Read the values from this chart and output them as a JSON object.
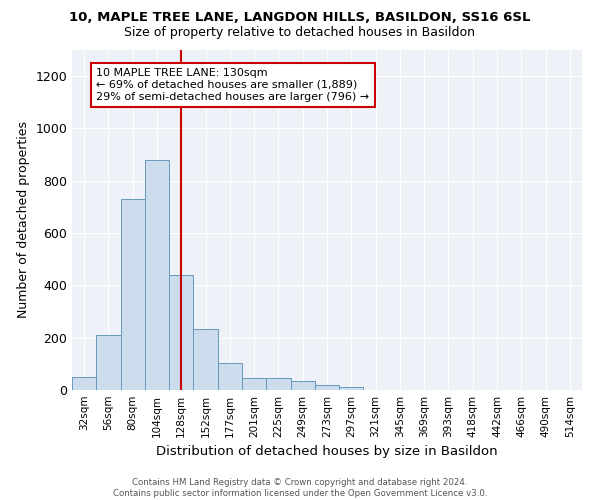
{
  "title1": "10, MAPLE TREE LANE, LANGDON HILLS, BASILDON, SS16 6SL",
  "title2": "Size of property relative to detached houses in Basildon",
  "xlabel": "Distribution of detached houses by size in Basildon",
  "ylabel": "Number of detached properties",
  "footnote": "Contains HM Land Registry data © Crown copyright and database right 2024.\nContains public sector information licensed under the Open Government Licence v3.0.",
  "bins": [
    "32sqm",
    "56sqm",
    "80sqm",
    "104sqm",
    "128sqm",
    "152sqm",
    "177sqm",
    "201sqm",
    "225sqm",
    "249sqm",
    "273sqm",
    "297sqm",
    "321sqm",
    "345sqm",
    "369sqm",
    "393sqm",
    "418sqm",
    "442sqm",
    "466sqm",
    "490sqm",
    "514sqm"
  ],
  "values": [
    50,
    210,
    730,
    880,
    440,
    235,
    105,
    47,
    47,
    35,
    20,
    10,
    0,
    0,
    0,
    0,
    0,
    0,
    0,
    0,
    0
  ],
  "bar_color": "#ccdcec",
  "bar_edge_color": "#6699bb",
  "red_line_x": 4,
  "annotation_text": "10 MAPLE TREE LANE: 130sqm\n← 69% of detached houses are smaller (1,889)\n29% of semi-detached houses are larger (796) →",
  "annotation_box_color": "#ffffff",
  "annotation_box_edge": "#cc0000",
  "ylim": [
    0,
    1300
  ],
  "yticks": [
    0,
    200,
    400,
    600,
    800,
    1000,
    1200
  ],
  "background_color": "#eef2f8"
}
